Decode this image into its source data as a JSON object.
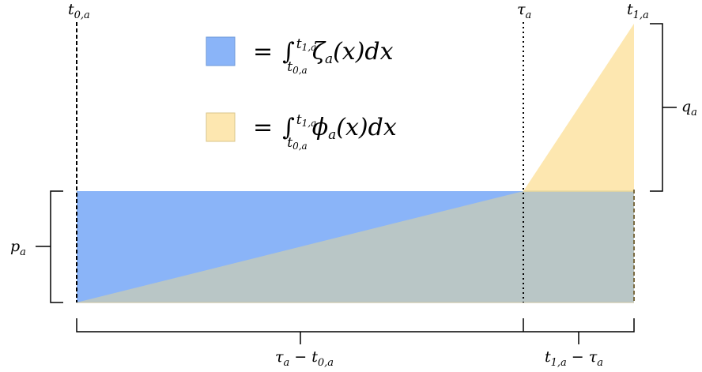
{
  "top_labels": {
    "t0": {
      "base": "t",
      "sub": "0,a"
    },
    "tau": {
      "base": "τ",
      "sub": "a"
    },
    "t1": {
      "base": "t",
      "sub": "1,a"
    }
  },
  "side_labels": {
    "p": {
      "base": "p",
      "sub": "a"
    },
    "q": {
      "base": "q",
      "sub": "a"
    }
  },
  "bottom_labels": {
    "left": {
      "a": "τ",
      "a_sub": "a",
      "op": "−",
      "b": "t",
      "b_sub": "0,a"
    },
    "right": {
      "a": "t",
      "a_sub": "1,a",
      "op": "−",
      "b": "τ",
      "b_sub": "a"
    }
  },
  "legend": {
    "blue": {
      "color": "#8ab4f8",
      "eq": "=",
      "int": "∫",
      "upper": "t",
      "upper_sub": "1,a",
      "lower": "t",
      "lower_sub": "0,a",
      "fn": "ζ",
      "fn_sub": "a",
      "arg": "(x)dx"
    },
    "yellow": {
      "color": "#fde7b0",
      "eq": "=",
      "int": "∫",
      "upper": "t",
      "upper_sub": "1,a",
      "lower": "t",
      "lower_sub": "0,a",
      "fn": "ϕ",
      "fn_sub": "a",
      "arg": "(x)dx"
    }
  },
  "colors": {
    "blue": "#8ab4f8",
    "yellow": "#fde7b0",
    "overlap": "#b9c6c6"
  }
}
